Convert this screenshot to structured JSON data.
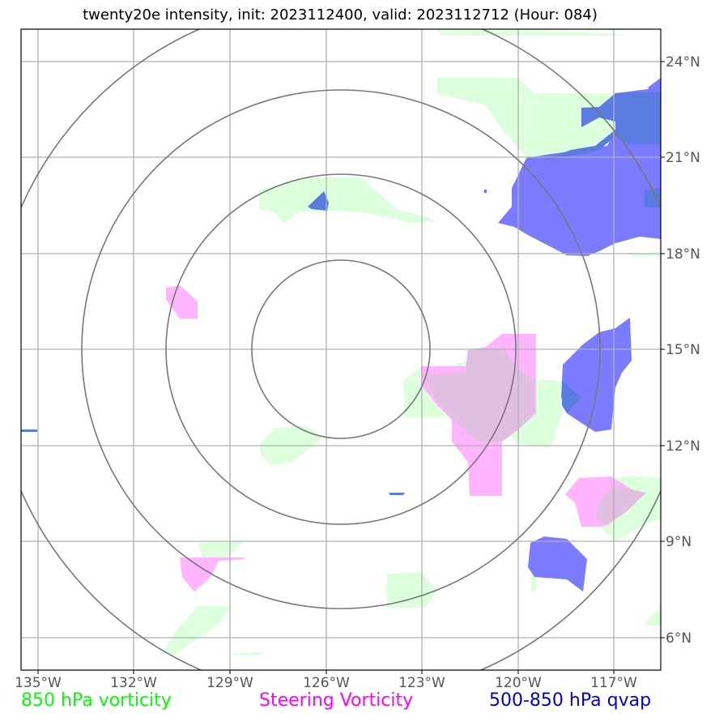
{
  "title": "twenty20e intensity, init: 2023112400, valid: 2023112712 (Hour: 084)",
  "lon_labels": [
    "135°W",
    "132°W",
    "129°W",
    "126°W",
    "123°W",
    "120°W",
    "117°W"
  ],
  "lat_labels": [
    "24°N",
    "21°N",
    "18°N",
    "15°N",
    "12°N",
    "9°N",
    "6°N"
  ],
  "legend": {
    "vorticity_850": "850 hPa vorticity",
    "steering_vorticity": "Steering Vorticity",
    "qvap": "500-850 hPa qvap"
  },
  "colors": {
    "vorticity_850": "#00ff00",
    "steering_vorticity": "#ff00ff",
    "qvap": "#0000dd",
    "vort_fill": "#dcffdc",
    "steer_fill": "#ffb4ff",
    "qvap_fill": "#7b7bff",
    "qvap_dark": "#5a7be0",
    "grid": "#b0b0b0",
    "range_ring": "#777777"
  }
}
